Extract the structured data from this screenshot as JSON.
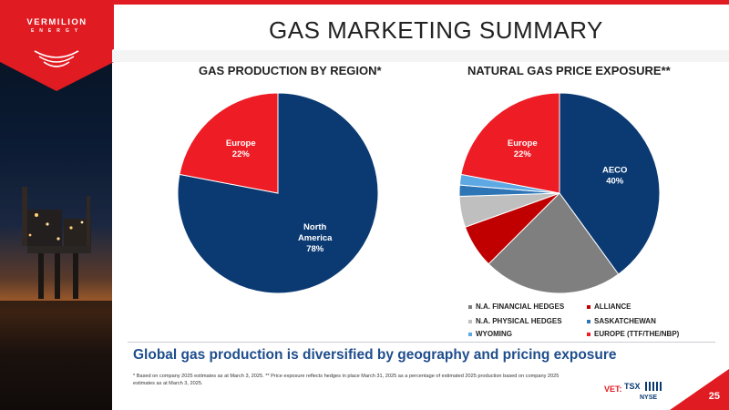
{
  "brand": {
    "name": "VERMILION",
    "sub": "ENERGY",
    "red": "#e11b22",
    "navy": "#0b3a73"
  },
  "slide": {
    "title": "GAS MARKETING SUMMARY",
    "page_number": "25"
  },
  "chart_data": [
    {
      "type": "pie",
      "title": "GAS PRODUCTION BY REGION*",
      "slices": [
        {
          "label": "North America",
          "label_lines": [
            "North",
            "America",
            "78%"
          ],
          "value": 78,
          "color": "#0b3a73"
        },
        {
          "label": "Europe",
          "label_lines": [
            "Europe",
            "22%"
          ],
          "value": 22,
          "color": "#ee1c25"
        }
      ]
    },
    {
      "type": "pie",
      "title": "NATURAL GAS PRICE EXPOSURE**",
      "slices": [
        {
          "label": "AECO",
          "label_lines": [
            "AECO",
            "40%"
          ],
          "value": 40,
          "color": "#0b3a73"
        },
        {
          "label": "N.A. FINANCIAL HEDGES",
          "label_lines": [],
          "value": 22.5,
          "color": "#7f7f7f"
        },
        {
          "label": "ALLIANCE",
          "label_lines": [],
          "value": 7,
          "color": "#c00000"
        },
        {
          "label": "N.A. PHYSICAL HEDGES",
          "label_lines": [],
          "value": 5,
          "color": "#bfbfbf"
        },
        {
          "label": "SASKATCHEWAN",
          "label_lines": [],
          "value": 1.8,
          "color": "#2e75b6"
        },
        {
          "label": "WYOMING",
          "label_lines": [],
          "value": 1.7,
          "color": "#5ea9e4"
        },
        {
          "label": "Europe",
          "label_lines": [
            "Europe",
            "22%"
          ],
          "value": 22,
          "color": "#ee1c25"
        }
      ],
      "legend": [
        {
          "label": "N.A. FINANCIAL HEDGES",
          "color": "#7f7f7f"
        },
        {
          "label": "ALLIANCE",
          "color": "#c00000"
        },
        {
          "label": "N.A. PHYSICAL HEDGES",
          "color": "#bfbfbf"
        },
        {
          "label": "SASKATCHEWAN",
          "color": "#2e75b6"
        },
        {
          "label": "WYOMING",
          "color": "#5ea9e4"
        },
        {
          "label": "EUROPE (TTF/THE/NBP)",
          "color": "#ee1c25"
        }
      ],
      "legend_position": "bottom"
    }
  ],
  "tagline": "Global gas production is diversified by geography and pricing exposure",
  "footnote": "* Based on company 2025 estimates as at March 3, 2025. ** Price exposure reflects hedges in place March 31, 2025 as a percentage of estimated 2025 production based on company 2025 estimates as at March 3, 2025.",
  "ticker": {
    "label": "VET:",
    "exchange_top": "TSX",
    "exchange_bottom": "NYSE"
  }
}
